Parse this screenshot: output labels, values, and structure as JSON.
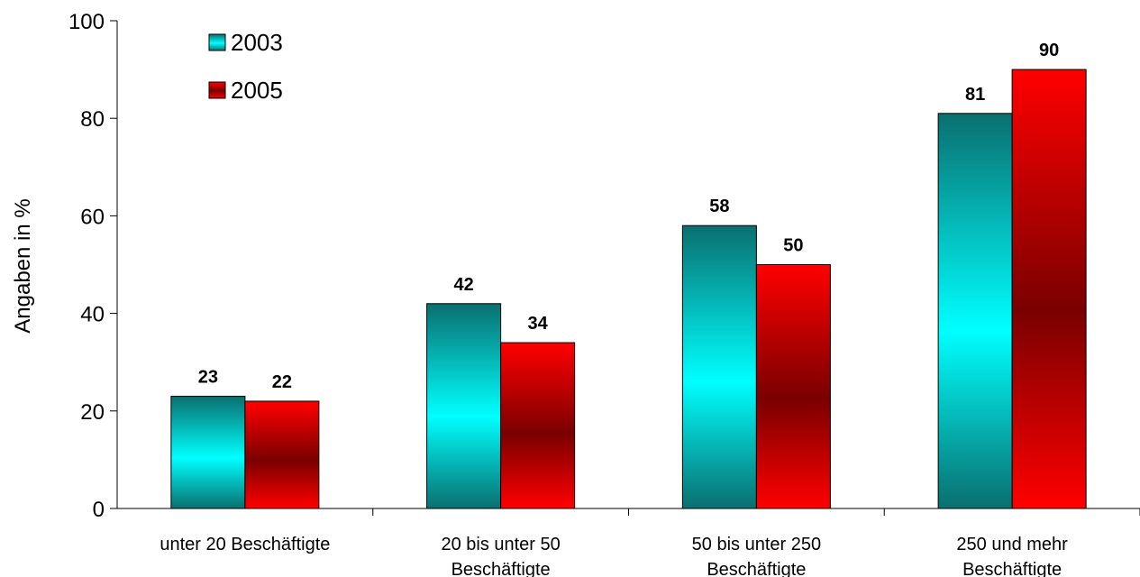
{
  "chart_data": {
    "type": "bar",
    "title": "",
    "xlabel": "",
    "ylabel": "Angaben in %",
    "ylim": [
      0,
      100
    ],
    "yticks": [
      0,
      20,
      40,
      60,
      80,
      100
    ],
    "grid": false,
    "legend_position": "top-left",
    "categories": [
      [
        "unter 20 Beschäftigte"
      ],
      [
        "20 bis unter 50",
        "Beschäftigte"
      ],
      [
        "50 bis unter 250",
        "Beschäftigte"
      ],
      [
        "250 und mehr",
        "Beschäftigte"
      ]
    ],
    "series": [
      {
        "name": "2003",
        "values": [
          23,
          42,
          58,
          81
        ],
        "color_edge": "#0a6f6f",
        "color_mid": "#00ffff"
      },
      {
        "name": "2005",
        "values": [
          22,
          34,
          50,
          90
        ],
        "color_edge": "#ff0000",
        "color_mid": "#7a0000"
      }
    ]
  }
}
